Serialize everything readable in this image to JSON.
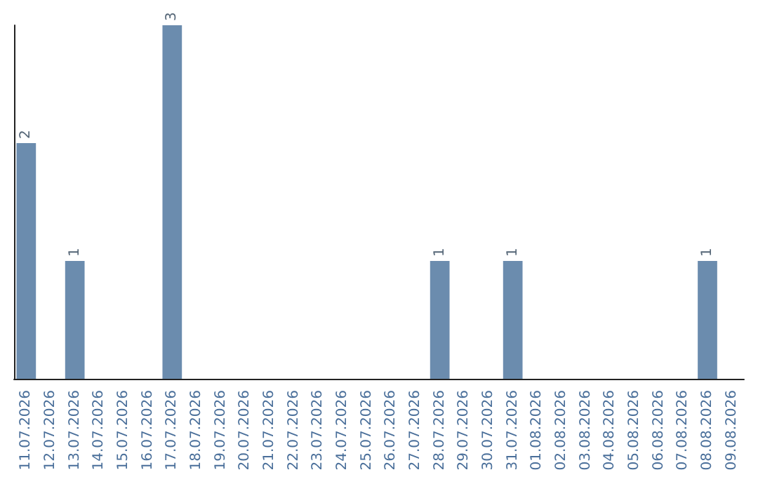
{
  "chart_data": {
    "type": "bar",
    "categories": [
      "11.07.2026",
      "12.07.2026",
      "13.07.2026",
      "14.07.2026",
      "15.07.2026",
      "16.07.2026",
      "17.07.2026",
      "18.07.2026",
      "19.07.2026",
      "20.07.2026",
      "21.07.2026",
      "22.07.2026",
      "23.07.2026",
      "24.07.2026",
      "25.07.2026",
      "26.07.2026",
      "27.07.2026",
      "28.07.2026",
      "29.07.2026",
      "30.07.2026",
      "31.07.2026",
      "01.08.2026",
      "02.08.2026",
      "03.08.2026",
      "04.08.2026",
      "05.08.2026",
      "06.08.2026",
      "07.08.2026",
      "08.08.2026",
      "09.08.2026"
    ],
    "values": [
      2,
      0,
      1,
      0,
      0,
      0,
      3,
      0,
      0,
      0,
      0,
      0,
      0,
      0,
      0,
      0,
      0,
      1,
      0,
      0,
      1,
      0,
      0,
      0,
      0,
      0,
      0,
      0,
      1,
      0
    ],
    "value_labels": [
      "2",
      null,
      "1",
      null,
      null,
      null,
      "3",
      null,
      null,
      null,
      null,
      null,
      null,
      null,
      null,
      null,
      null,
      "1",
      null,
      null,
      "1",
      null,
      null,
      null,
      null,
      null,
      null,
      null,
      "1",
      null
    ],
    "color": "#6b8cae",
    "tick_labels": "x",
    "grid": false
  }
}
